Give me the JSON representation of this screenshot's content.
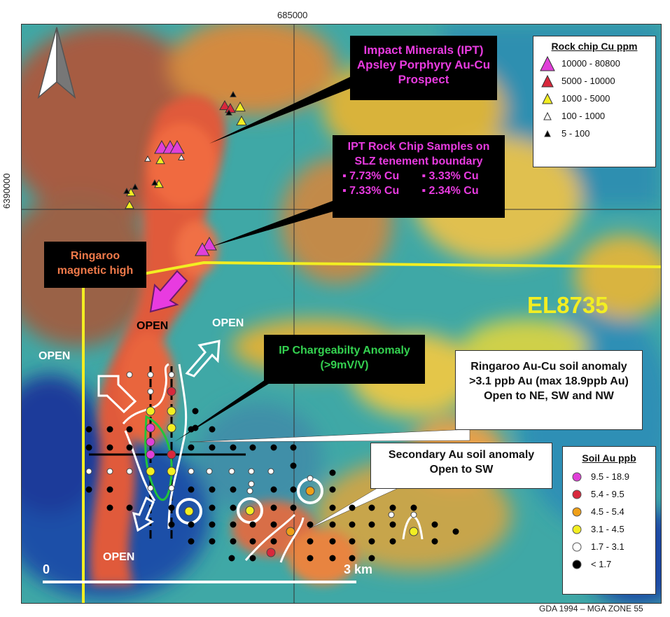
{
  "grid": {
    "easting_label": "685000",
    "northing_label": "6390000",
    "projection": "GDA 1994 – MGA ZONE 55"
  },
  "callouts": {
    "apsley": "Impact Minerals (IPT) Apsley Porphyry Au-Cu Prospect",
    "rockchip_title": "IPT Rock Chip Samples on SLZ tenement boundary",
    "rockchip_values": [
      "▪ 7.73% Cu",
      "▪ 3.33% Cu",
      "▪ 7.33% Cu",
      "▪ 2.34% Cu"
    ],
    "ringaroo_mag": "Ringaroo magnetic high",
    "ip_anomaly": "IP Chargeabilty Anomaly (>9mV/V)",
    "ringaroo_soil": "Ringaroo Au-Cu soil anomaly >3.1 ppb Au (max 18.9ppb Au) Open to NE, SW and NW",
    "secondary": "Secondary Au soil anomaly Open to SW"
  },
  "tenement": "EL8735",
  "open_labels": [
    "OPEN",
    "OPEN",
    "OPEN",
    "OPEN"
  ],
  "scale": {
    "start": "0",
    "end": "3 km"
  },
  "legend_rock": {
    "title": "Rock chip Cu ppm",
    "items": [
      {
        "label": "10000 - 80800",
        "color": "#e040d8"
      },
      {
        "label": "5000 - 10000",
        "color": "#d8283c"
      },
      {
        "label": "1000 - 5000",
        "color": "#f2ee22"
      },
      {
        "label": "100 - 1000",
        "color": "#ffffff"
      },
      {
        "label": "5 - 100",
        "color": "#000000"
      }
    ]
  },
  "legend_soil": {
    "title": "Soil Au ppb",
    "items": [
      {
        "label": "9.5 - 18.9",
        "color": "#e040d8"
      },
      {
        "label": "5.4 - 9.5",
        "color": "#d8283c"
      },
      {
        "label": "4.5 - 5.4",
        "color": "#f0a018"
      },
      {
        "label": "3.1 - 4.5",
        "color": "#f2ee22"
      },
      {
        "label": "1.7 - 3.1",
        "color": "#ffffff"
      },
      {
        "label": "< 1.7",
        "color": "#000000"
      }
    ]
  }
}
